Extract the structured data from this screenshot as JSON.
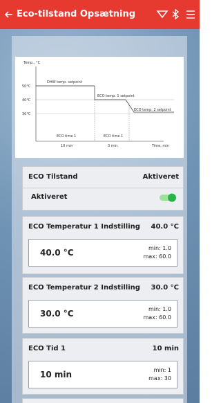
{
  "header": {
    "title": "Eco-tilstand Opsætning"
  },
  "diagram": {
    "y_axis_label": "Temp., °C",
    "levels": [
      "50°C",
      "40°C",
      "30°C"
    ],
    "setpoints": [
      "DHW temp. setpoint",
      "ECO temp. 1 setpoint",
      "ECO temp. 2 setpoint"
    ],
    "periods": [
      {
        "label": "ECO time 1",
        "duration": "10 min"
      },
      {
        "label": "ECO time 1",
        "duration": "3 min"
      }
    ],
    "x_axis_label": "Time, min"
  },
  "cards": [
    {
      "title": "ECO Tilstand",
      "value": "Aktiveret",
      "row_label": "Aktiveret"
    },
    {
      "title": "ECO Temperatur 1 Indstilling",
      "value": "40.0 °C",
      "input": "40.0 °C",
      "min": "min: 1.0",
      "max": "max: 60.0"
    },
    {
      "title": "ECO Temperatur 2 Indstilling",
      "value": "30.0 °C",
      "input": "30.0 °C",
      "min": "min: 1.0",
      "max": "max: 60.0"
    },
    {
      "title": "ECO Tid 1",
      "value": "10 min",
      "input": "10 min",
      "min": "min: 1",
      "max": "max: 30"
    }
  ]
}
